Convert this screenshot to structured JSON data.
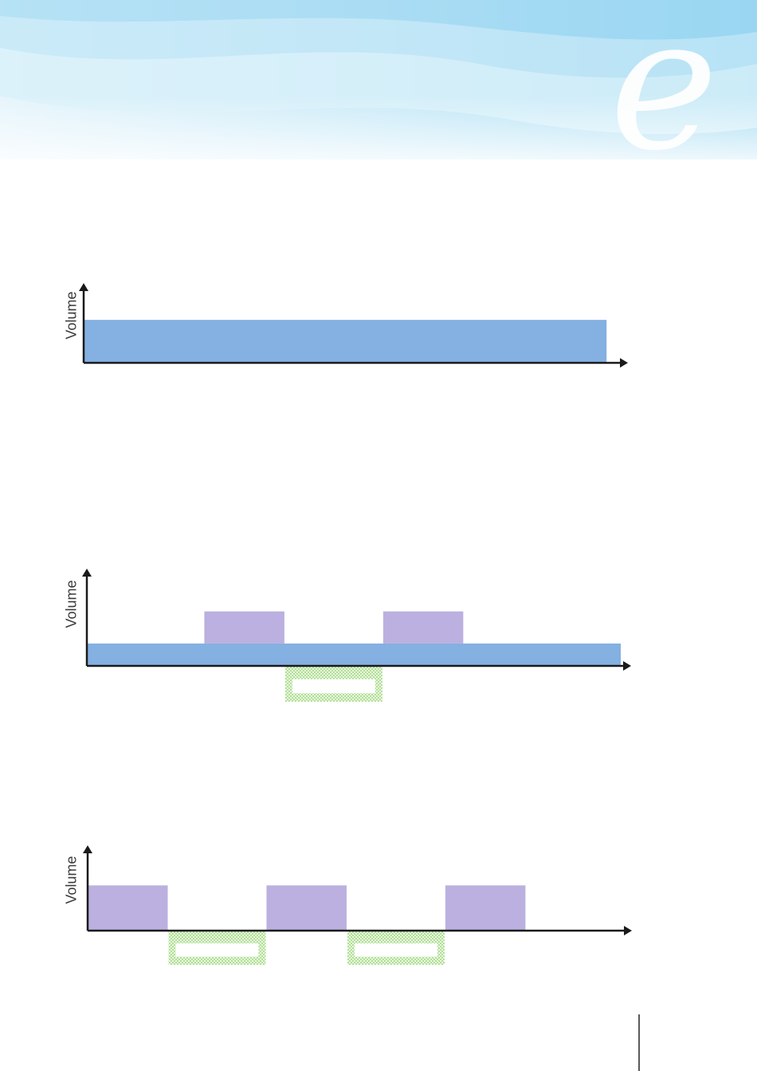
{
  "colors": {
    "base_flow": "#84b0e2",
    "surge": "#bbb0df",
    "deficit_hatch": "#9dd97e",
    "axis": "#1a1a1a",
    "banner_light": "#e3f3fb",
    "banner_mid": "#a7dcf3",
    "banner_accent": "#6fc7ec"
  },
  "banner": {
    "logo_glyph": "e"
  },
  "diagrams": [
    {
      "id": "constant-volume",
      "y_label": "Volume",
      "blocks": [
        {
          "kind": "base",
          "start": 0,
          "end": 0.965,
          "level": 0.55
        }
      ]
    },
    {
      "id": "base-plus-surges",
      "y_label": "Volume",
      "blocks": [
        {
          "kind": "base",
          "start": 0,
          "end": 1.0,
          "level": 0.23
        },
        {
          "kind": "surge",
          "start": 0.22,
          "end": 0.37,
          "from": 0.23,
          "to": 0.56
        },
        {
          "kind": "surge",
          "start": 0.555,
          "end": 0.705,
          "from": 0.23,
          "to": 0.56
        },
        {
          "kind": "deficit",
          "start": 0.37,
          "end": 0.555,
          "depth": 0.36
        }
      ]
    },
    {
      "id": "alternating-surges",
      "y_label": "Volume",
      "blocks": [
        {
          "kind": "surge",
          "start": 0,
          "end": 0.15,
          "from": 0,
          "to": 0.61
        },
        {
          "kind": "surge",
          "start": 0.335,
          "end": 0.485,
          "from": 0,
          "to": 0.61
        },
        {
          "kind": "surge",
          "start": 0.67,
          "end": 0.82,
          "from": 0,
          "to": 0.61
        },
        {
          "kind": "deficit",
          "start": 0.15,
          "end": 0.335,
          "depth": 0.45
        },
        {
          "kind": "deficit",
          "start": 0.485,
          "end": 0.67,
          "depth": 0.45
        }
      ]
    }
  ]
}
